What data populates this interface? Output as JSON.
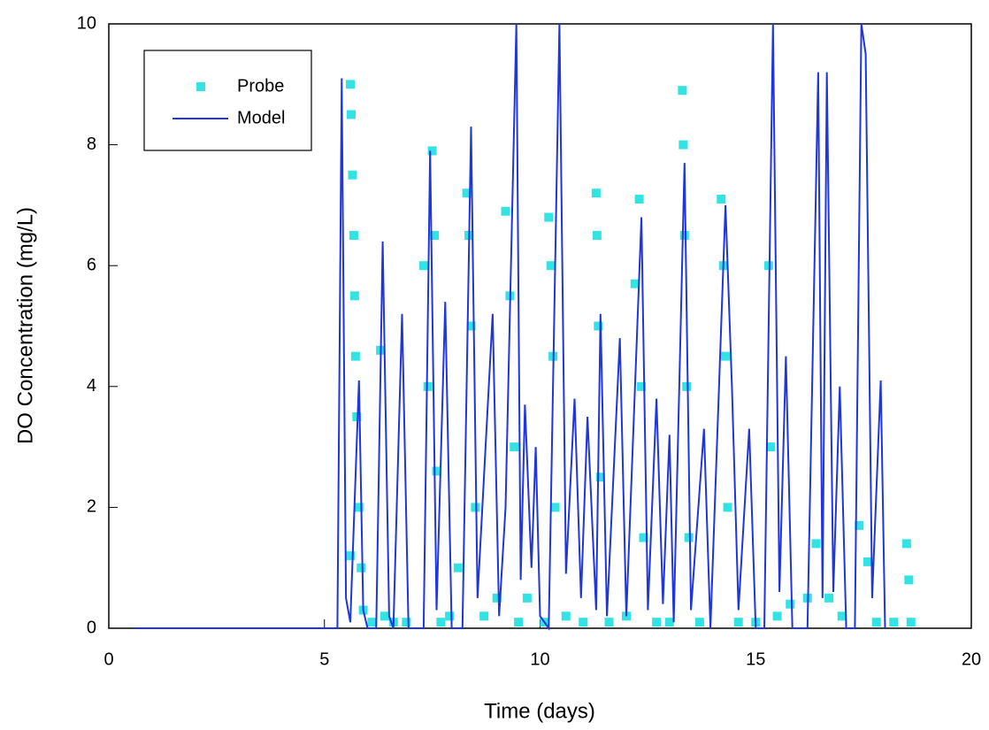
{
  "chart_data": {
    "type": "combo",
    "x_label": "Time (days)",
    "y_label": "DO Concentration (mg/L)",
    "xlim": [
      0,
      20
    ],
    "xticks": [
      0,
      5,
      10,
      15,
      20
    ],
    "ylim": [
      0,
      10
    ],
    "yticks": [
      0,
      2,
      4,
      6,
      8,
      10
    ],
    "legend": "upper-left",
    "series": [
      {
        "name": "Probe",
        "type": "scatter",
        "color": "#33e3e3",
        "x": [
          5.6,
          5.62,
          5.65,
          5.68,
          5.7,
          5.72,
          5.75,
          5.8,
          5.85,
          5.9,
          5.6,
          6.1,
          6.3,
          6.4,
          6.6,
          6.9,
          7.3,
          7.4,
          7.5,
          7.55,
          7.6,
          7.7,
          7.9,
          8.1,
          8.3,
          8.35,
          8.4,
          8.5,
          8.7,
          9.0,
          9.2,
          9.3,
          9.4,
          9.5,
          9.7,
          10.1,
          10.2,
          10.25,
          10.3,
          10.35,
          10.6,
          11.0,
          11.3,
          11.32,
          11.35,
          11.4,
          11.6,
          12.0,
          12.2,
          12.3,
          12.35,
          12.4,
          12.7,
          13.0,
          13.3,
          13.32,
          13.35,
          13.4,
          13.45,
          13.7,
          14.2,
          14.25,
          14.3,
          14.35,
          14.6,
          15.0,
          15.3,
          15.35,
          15.5,
          15.8,
          16.2,
          16.4,
          16.7,
          17.0,
          17.4,
          17.6,
          17.8,
          18.2,
          18.5,
          18.55,
          18.6
        ],
        "values": [
          9.0,
          8.5,
          7.5,
          6.5,
          5.5,
          4.5,
          3.5,
          2.0,
          1.0,
          0.3,
          1.2,
          0.1,
          4.6,
          0.2,
          0.1,
          0.1,
          6.0,
          4.0,
          7.9,
          6.5,
          2.6,
          0.1,
          0.2,
          1.0,
          7.2,
          6.5,
          5.0,
          2.0,
          0.2,
          0.5,
          6.9,
          5.5,
          3.0,
          0.1,
          0.5,
          0.1,
          6.8,
          6.0,
          4.5,
          2.0,
          0.2,
          0.1,
          7.2,
          6.5,
          5.0,
          2.5,
          0.1,
          0.2,
          5.7,
          7.1,
          4.0,
          1.5,
          0.1,
          0.1,
          8.9,
          8.0,
          6.5,
          4.0,
          1.5,
          0.1,
          7.1,
          6.0,
          4.5,
          2.0,
          0.1,
          0.1,
          6.0,
          3.0,
          0.2,
          0.4,
          0.5,
          1.4,
          0.5,
          0.2,
          1.7,
          1.1,
          0.1,
          0.1,
          1.4,
          0.8,
          0.1
        ]
      },
      {
        "name": "Model",
        "type": "line",
        "color": "#1f35e0",
        "x": [
          0.6,
          5.3,
          5.4,
          5.5,
          5.6,
          5.8,
          5.9,
          6.0,
          6.2,
          6.35,
          6.5,
          6.6,
          6.8,
          6.95,
          7.3,
          7.45,
          7.6,
          7.8,
          7.95,
          8.2,
          8.4,
          8.55,
          8.9,
          9.05,
          9.2,
          9.45,
          9.55,
          9.65,
          9.8,
          9.9,
          10.0,
          10.2,
          10.45,
          10.6,
          10.8,
          10.95,
          11.1,
          11.3,
          11.4,
          11.55,
          11.85,
          12.0,
          12.35,
          12.5,
          12.7,
          12.85,
          13.0,
          13.1,
          13.35,
          13.5,
          13.8,
          13.95,
          14.3,
          14.45,
          14.6,
          14.85,
          15.0,
          15.2,
          15.4,
          15.55,
          15.7,
          15.85,
          16.2,
          16.45,
          16.55,
          16.65,
          16.8,
          16.95,
          17.1,
          17.3,
          17.45,
          17.55,
          17.7,
          17.9,
          18.0
        ],
        "values": [
          0,
          0,
          9.1,
          0.5,
          0.1,
          4.1,
          0.3,
          0,
          0,
          6.4,
          0.2,
          0,
          5.2,
          0,
          0,
          7.9,
          0.3,
          5.4,
          0,
          0,
          8.3,
          0.5,
          5.2,
          0.2,
          2.0,
          10,
          0.8,
          3.7,
          1.0,
          3.0,
          0.2,
          0,
          10,
          0.9,
          3.8,
          0.5,
          3.5,
          0.3,
          5.2,
          0.2,
          4.8,
          0.2,
          6.8,
          0.3,
          3.8,
          0.4,
          3.2,
          0.1,
          7.7,
          0.3,
          3.3,
          0,
          7.0,
          4.0,
          0.3,
          3.3,
          0,
          0,
          10,
          0.6,
          4.5,
          0,
          0,
          9.2,
          0.5,
          9.2,
          0.6,
          4.0,
          0,
          0,
          10,
          9.5,
          0.5,
          4.1,
          0
        ]
      }
    ]
  }
}
